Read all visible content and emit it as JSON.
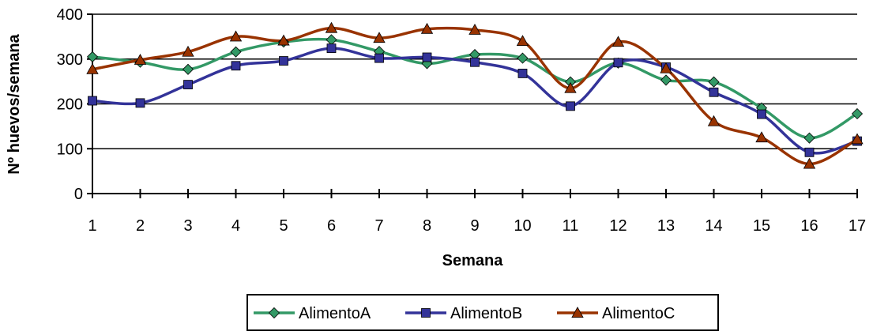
{
  "chart_data": {
    "type": "line",
    "xlabel": "Semana",
    "ylabel": "Nº huevos/semana",
    "x": [
      1,
      2,
      3,
      4,
      5,
      6,
      7,
      8,
      9,
      10,
      11,
      12,
      13,
      14,
      15,
      16,
      17
    ],
    "x_tick_labels": [
      "1",
      "2",
      "3",
      "4",
      "5",
      "6",
      "7",
      "8",
      "9",
      "10",
      "11",
      "12",
      "13",
      "14",
      "15",
      "16",
      "17"
    ],
    "ylim": [
      0,
      400
    ],
    "y_ticks": [
      0,
      100,
      200,
      300,
      400
    ],
    "y_tick_labels": [
      "0",
      "100",
      "200",
      "300",
      "400"
    ],
    "grid": "horizontal",
    "legend_position": "bottom",
    "series": [
      {
        "name": "AlimentoA",
        "color": "#339966",
        "marker": "diamond",
        "values": [
          305,
          293,
          277,
          316,
          338,
          343,
          317,
          290,
          310,
          302,
          249,
          291,
          253,
          249,
          191,
          124,
          178
        ]
      },
      {
        "name": "AlimentoB",
        "color": "#333399",
        "marker": "square",
        "values": [
          207,
          202,
          243,
          285,
          296,
          324,
          302,
          304,
          293,
          268,
          195,
          292,
          282,
          226,
          177,
          92,
          117
        ]
      },
      {
        "name": "AlimentoC",
        "color": "#993300",
        "marker": "triangle",
        "values": [
          277,
          298,
          316,
          350,
          341,
          369,
          347,
          367,
          365,
          340,
          235,
          338,
          279,
          161,
          125,
          66,
          121
        ]
      }
    ]
  }
}
